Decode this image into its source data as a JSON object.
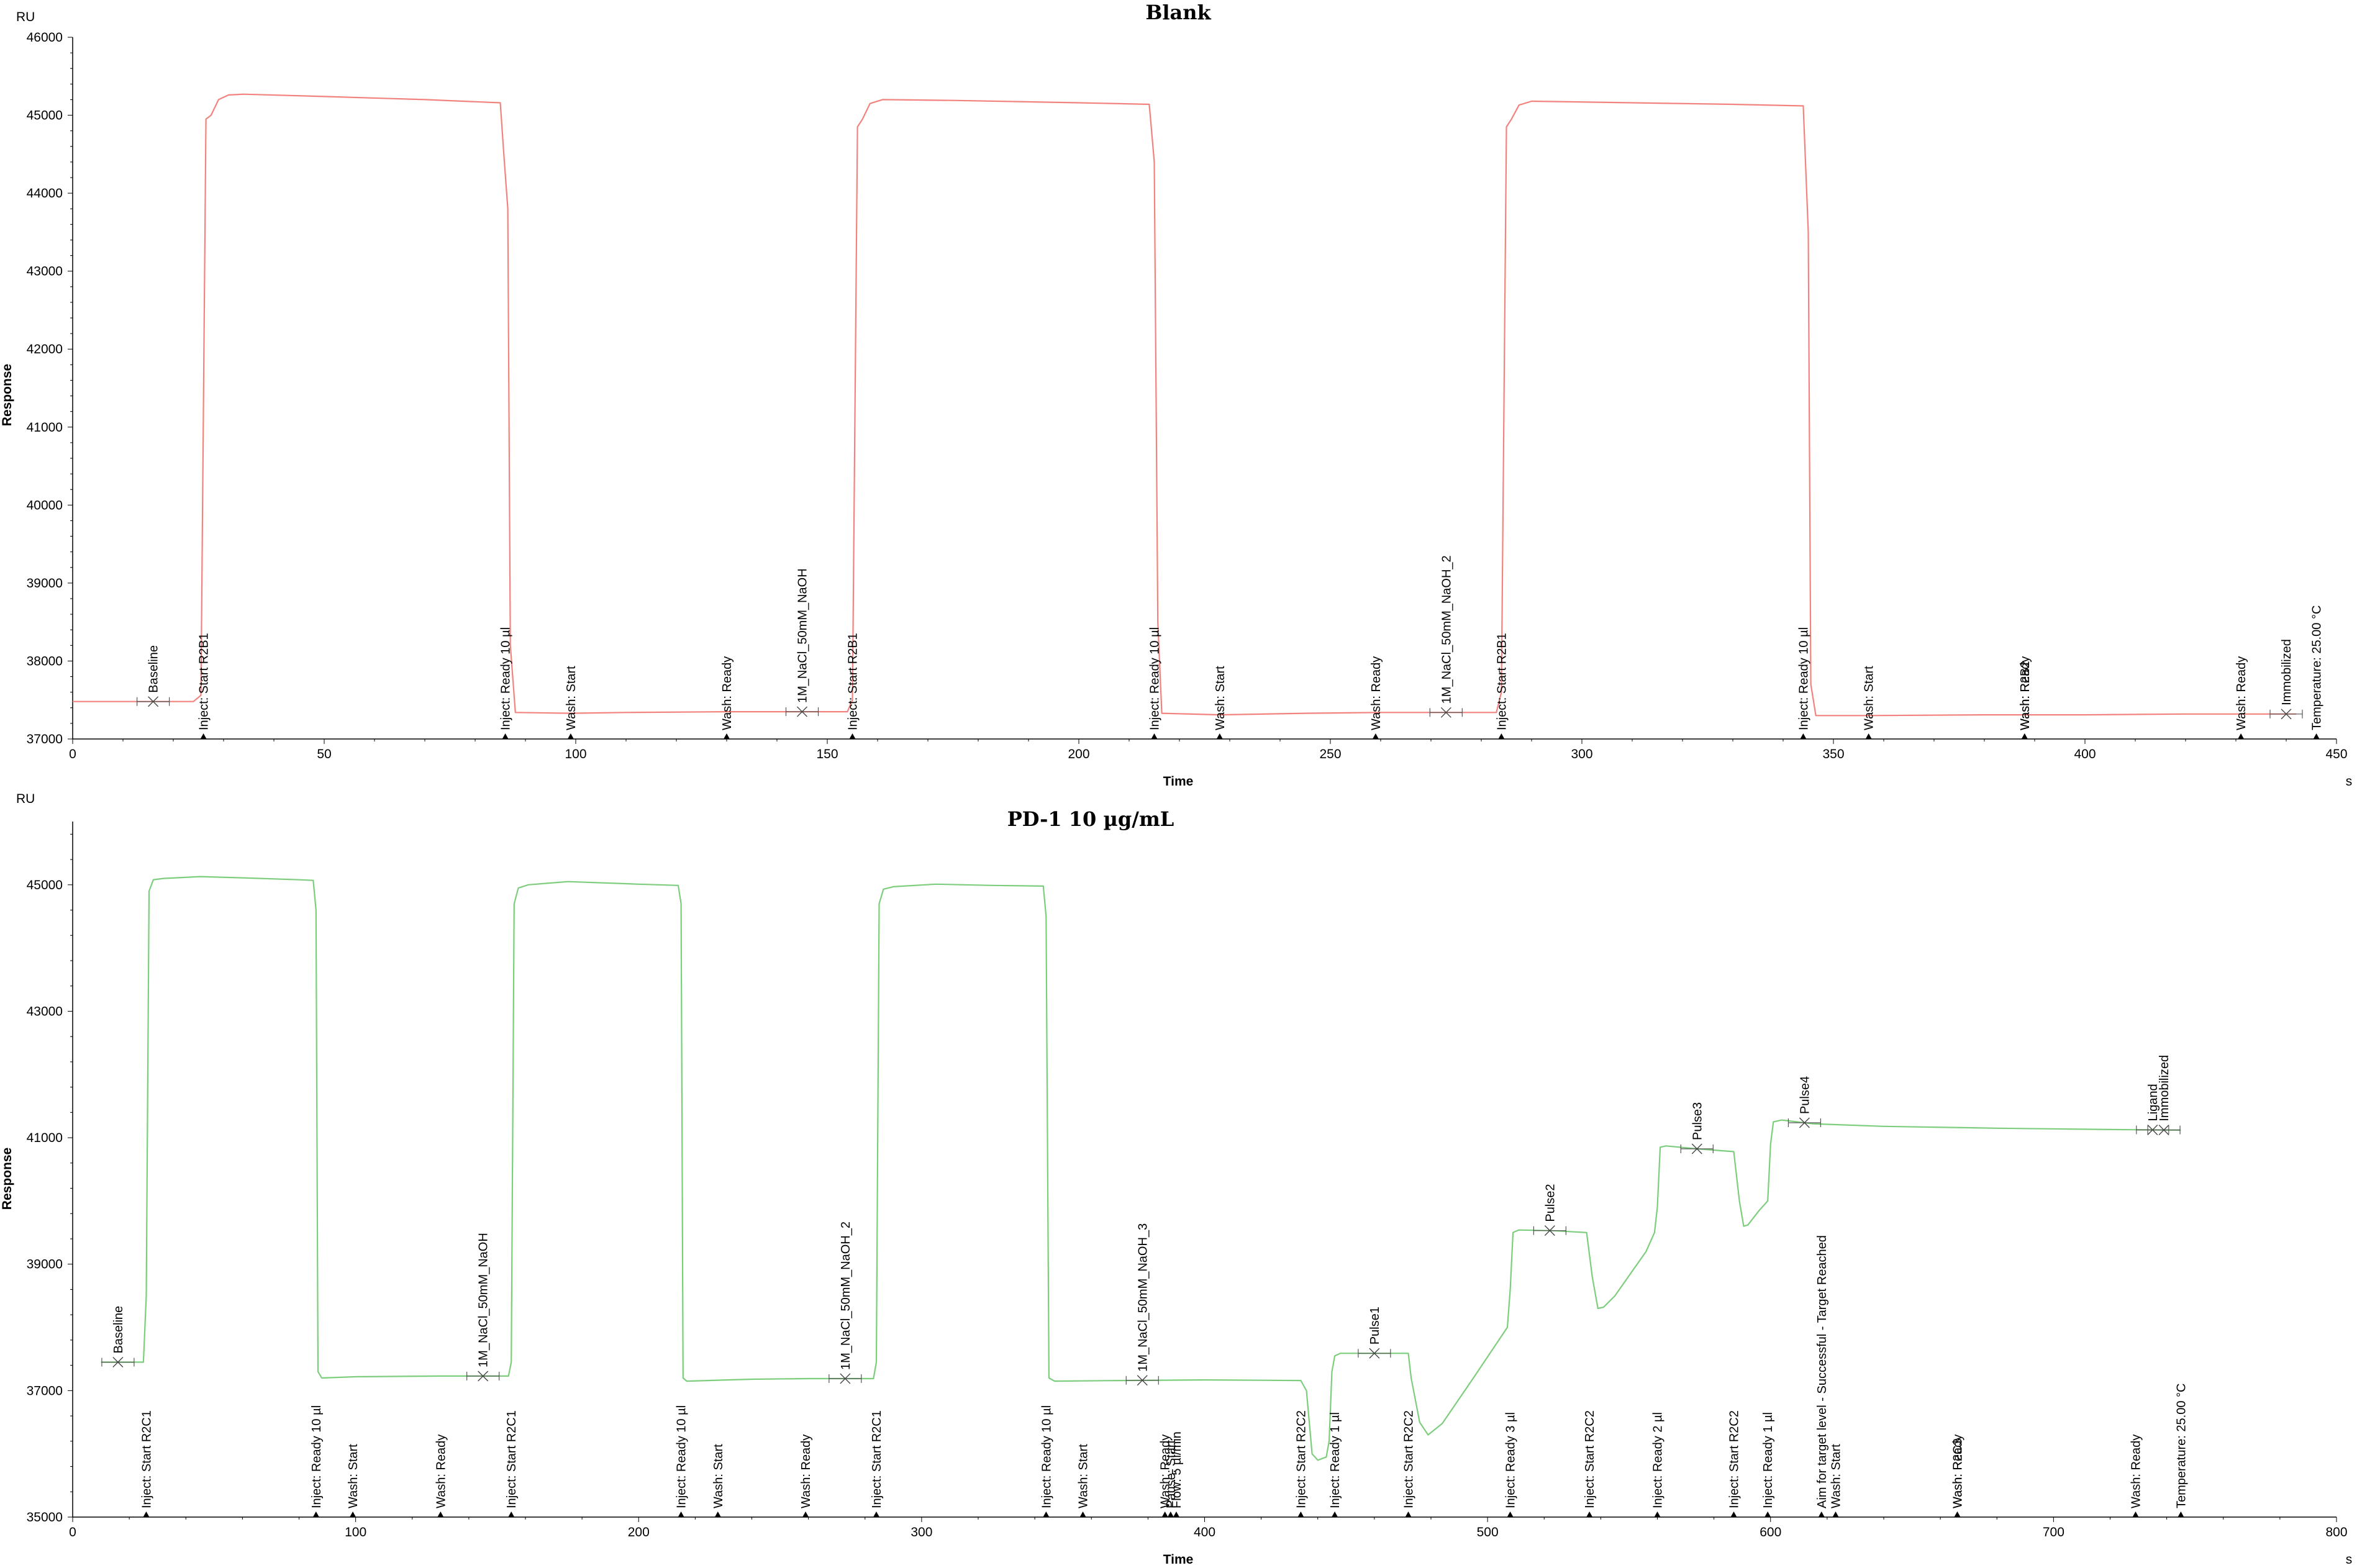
{
  "chart_data": [
    {
      "type": "line",
      "title": "Blank",
      "xlabel": "Time",
      "ylabel": "Response",
      "x_unit": "s",
      "y_unit": "RU",
      "xlim": [
        0,
        450
      ],
      "ylim": [
        37000,
        46000
      ],
      "xticks": [
        0,
        50,
        100,
        150,
        200,
        250,
        300,
        350,
        400,
        450
      ],
      "yticks": [
        37000,
        38000,
        39000,
        40000,
        41000,
        42000,
        43000,
        44000,
        45000,
        46000
      ],
      "grid": false,
      "legend": "none",
      "series": [
        {
          "color": "#f2827d",
          "points": [
            [
              0,
              37480
            ],
            [
              24,
              37480
            ],
            [
              25.5,
              37560
            ],
            [
              26.5,
              44950
            ],
            [
              27.5,
              45000
            ],
            [
              29,
              45200
            ],
            [
              31,
              45260
            ],
            [
              34,
              45270
            ],
            [
              50,
              45240
            ],
            [
              70,
              45200
            ],
            [
              85,
              45160
            ],
            [
              85.7,
              44500
            ],
            [
              86.5,
              43800
            ],
            [
              87,
              38200
            ],
            [
              88,
              37340
            ],
            [
              99,
              37330
            ],
            [
              110,
              37340
            ],
            [
              130,
              37350
            ],
            [
              150,
              37350
            ],
            [
              154,
              37350
            ],
            [
              155,
              37500
            ],
            [
              156,
              44850
            ],
            [
              157,
              44950
            ],
            [
              158.5,
              45150
            ],
            [
              161,
              45200
            ],
            [
              175,
              45190
            ],
            [
              200,
              45160
            ],
            [
              214,
              45140
            ],
            [
              215,
              44400
            ],
            [
              215.7,
              38500
            ],
            [
              216.5,
              37330
            ],
            [
              228,
              37310
            ],
            [
              245,
              37330
            ],
            [
              260,
              37340
            ],
            [
              280,
              37340
            ],
            [
              283,
              37340
            ],
            [
              284,
              37600
            ],
            [
              285,
              44850
            ],
            [
              286,
              44950
            ],
            [
              287.5,
              45130
            ],
            [
              290,
              45180
            ],
            [
              310,
              45160
            ],
            [
              330,
              45140
            ],
            [
              344,
              45120
            ],
            [
              345,
              43500
            ],
            [
              345.5,
              37700
            ],
            [
              346.5,
              37300
            ],
            [
              357,
              37300
            ],
            [
              380,
              37310
            ],
            [
              400,
              37310
            ],
            [
              420,
              37320
            ],
            [
              442,
              37320
            ]
          ]
        }
      ],
      "events": [
        {
          "label": "Baseline",
          "x": 16,
          "at_curve": true
        },
        {
          "label": "Inject: Start R2B1",
          "x": 26
        },
        {
          "label": "Inject: Ready 10 µl",
          "x": 86
        },
        {
          "label": "Wash: Start",
          "x": 99
        },
        {
          "label": "Wash: Ready",
          "x": 130
        },
        {
          "label": "1M_NaCl_50mM_NaOH",
          "x": 145,
          "at_curve": true
        },
        {
          "label": "Inject: Start R2B1",
          "x": 155
        },
        {
          "label": "Inject: Ready 10 µl",
          "x": 215
        },
        {
          "label": "Wash: Start",
          "x": 228
        },
        {
          "label": "Wash: Ready",
          "x": 259
        },
        {
          "label": "1M_NaCl_50mM_NaOH_2",
          "x": 273,
          "at_curve": true
        },
        {
          "label": "Inject: Start R2B1",
          "x": 284
        },
        {
          "label": "Inject: Ready 10 µl",
          "x": 344
        },
        {
          "label": "Wash: Start",
          "x": 357
        },
        {
          "label": "Wash: R2B2",
          "x": 388
        },
        {
          "label": "Wash: Ready",
          "x": 388
        },
        {
          "label": "Wash: Ready",
          "x": 431
        },
        {
          "label": "Immobilized",
          "x": 440,
          "at_curve": true
        },
        {
          "label": "Temperature: 25.00 °C",
          "x": 446
        }
      ]
    },
    {
      "type": "line",
      "title": "PD-1 10 µg/mL",
      "xlabel": "Time",
      "ylabel": "Response",
      "x_unit": "s",
      "y_unit": "RU",
      "xlim": [
        0,
        800
      ],
      "ylim": [
        35000,
        46000
      ],
      "xticks": [
        0,
        100,
        200,
        300,
        400,
        500,
        600,
        700,
        800
      ],
      "yticks": [
        35000,
        37000,
        39000,
        41000,
        43000,
        45000
      ],
      "grid": false,
      "legend": "none",
      "series": [
        {
          "color": "#7ccd7c",
          "points": [
            [
              10,
              37450
            ],
            [
              25,
              37450
            ],
            [
              26,
              38500
            ],
            [
              27,
              44900
            ],
            [
              28.5,
              45080
            ],
            [
              32,
              45100
            ],
            [
              45,
              45130
            ],
            [
              60,
              45110
            ],
            [
              80,
              45080
            ],
            [
              85,
              45070
            ],
            [
              86,
              44600
            ],
            [
              86.7,
              37300
            ],
            [
              88,
              37200
            ],
            [
              100,
              37220
            ],
            [
              130,
              37230
            ],
            [
              154,
              37230
            ],
            [
              155,
              37450
            ],
            [
              156,
              44700
            ],
            [
              157.5,
              44950
            ],
            [
              161,
              45000
            ],
            [
              175,
              45050
            ],
            [
              200,
              45010
            ],
            [
              214,
              44990
            ],
            [
              215,
              44700
            ],
            [
              215.7,
              37200
            ],
            [
              217,
              37150
            ],
            [
              240,
              37180
            ],
            [
              260,
              37190
            ],
            [
              283,
              37190
            ],
            [
              284,
              37450
            ],
            [
              285,
              44700
            ],
            [
              286.5,
              44930
            ],
            [
              290,
              44970
            ],
            [
              305,
              45010
            ],
            [
              325,
              44990
            ],
            [
              343,
              44980
            ],
            [
              344,
              44500
            ],
            [
              345,
              37200
            ],
            [
              347,
              37150
            ],
            [
              370,
              37160
            ],
            [
              400,
              37170
            ],
            [
              434,
              37160
            ],
            [
              436,
              37000
            ],
            [
              438,
              36000
            ],
            [
              440,
              35900
            ],
            [
              443,
              35950
            ],
            [
              444,
              36200
            ],
            [
              445,
              37300
            ],
            [
              446,
              37550
            ],
            [
              448,
              37590
            ],
            [
              465,
              37590
            ],
            [
              472,
              37590
            ],
            [
              473,
              37200
            ],
            [
              476,
              36500
            ],
            [
              479,
              36300
            ],
            [
              484,
              36480
            ],
            [
              495,
              37200
            ],
            [
              507,
              38000
            ],
            [
              508,
              38600
            ],
            [
              509,
              39500
            ],
            [
              511,
              39540
            ],
            [
              523,
              39530
            ],
            [
              535,
              39500
            ],
            [
              537,
              38800
            ],
            [
              539,
              38300
            ],
            [
              541,
              38320
            ],
            [
              545,
              38500
            ],
            [
              556,
              39200
            ],
            [
              559,
              39500
            ],
            [
              560,
              39900
            ],
            [
              561,
              40850
            ],
            [
              563,
              40870
            ],
            [
              575,
              40820
            ],
            [
              587,
              40780
            ],
            [
              589,
              40000
            ],
            [
              590.5,
              39600
            ],
            [
              592,
              39620
            ],
            [
              596,
              39850
            ],
            [
              599,
              40000
            ],
            [
              600,
              40900
            ],
            [
              601,
              41250
            ],
            [
              604,
              41280
            ],
            [
              615,
              41220
            ],
            [
              640,
              41180
            ],
            [
              680,
              41150
            ],
            [
              720,
              41130
            ],
            [
              745,
              41120
            ]
          ]
        }
      ],
      "events": [
        {
          "label": "Baseline",
          "x": 16,
          "at_curve": true
        },
        {
          "label": "Inject: Start R2C1",
          "x": 26
        },
        {
          "label": "Inject: Ready 10 µl",
          "x": 86
        },
        {
          "label": "Wash: Start",
          "x": 99
        },
        {
          "label": "Wash: Ready",
          "x": 130
        },
        {
          "label": "1M_NaCl_50mM_NaOH",
          "x": 145,
          "at_curve": true
        },
        {
          "label": "Inject: Start R2C1",
          "x": 155
        },
        {
          "label": "Inject: Ready 10 µl",
          "x": 215
        },
        {
          "label": "Wash: Start",
          "x": 228
        },
        {
          "label": "Wash: Ready",
          "x": 259
        },
        {
          "label": "1M_NaCl_50mM_NaOH_2",
          "x": 273,
          "at_curve": true
        },
        {
          "label": "Inject: Start R2C1",
          "x": 284
        },
        {
          "label": "Inject: Ready 10 µl",
          "x": 344
        },
        {
          "label": "Wash: Start",
          "x": 357
        },
        {
          "label": "1M_NaCl_50mM_NaOH_3",
          "x": 378,
          "at_curve": true
        },
        {
          "label": "Wash: Ready",
          "x": 386
        },
        {
          "label": "Pause: Start",
          "x": 388
        },
        {
          "label": "Flow: 5 µl/min",
          "x": 390
        },
        {
          "label": "Inject: Start R2C2",
          "x": 434
        },
        {
          "label": "Inject: Ready 1 µl",
          "x": 446
        },
        {
          "label": "Pulse1",
          "x": 460,
          "at_curve": true
        },
        {
          "label": "Inject: Start R2C2",
          "x": 472
        },
        {
          "label": "Inject: Ready 3 µl",
          "x": 508
        },
        {
          "label": "Pulse2",
          "x": 522,
          "at_curve": true
        },
        {
          "label": "Inject: Start R2C2",
          "x": 536
        },
        {
          "label": "Inject: Ready 2 µl",
          "x": 560
        },
        {
          "label": "Pulse3",
          "x": 574,
          "at_curve": true
        },
        {
          "label": "Inject: Start R2C2",
          "x": 587
        },
        {
          "label": "Inject: Ready 1 µl",
          "x": 599
        },
        {
          "label": "Pulse4",
          "x": 612,
          "at_curve": true
        },
        {
          "label": "Aim for target level - Successful - Target Reached",
          "x": 618
        },
        {
          "label": "Wash: Start",
          "x": 623
        },
        {
          "label": "Wash: R2C3",
          "x": 666
        },
        {
          "label": "Wash: Ready",
          "x": 666
        },
        {
          "label": "Wash: Ready",
          "x": 729
        },
        {
          "label": "Ligand",
          "x": 735,
          "at_curve": true
        },
        {
          "label": "Immobilized",
          "x": 739,
          "at_curve": true
        },
        {
          "label": "Temperature: 25.00 °C",
          "x": 745
        }
      ]
    }
  ]
}
